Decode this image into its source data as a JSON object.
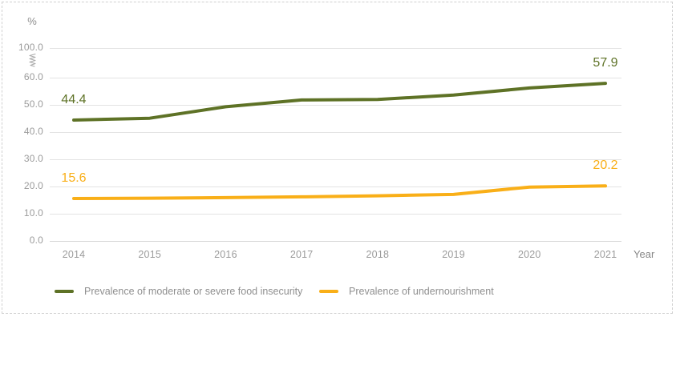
{
  "chart_data": {
    "type": "line",
    "unit_label": "%",
    "xlabel": "Year",
    "categories": [
      "2014",
      "2015",
      "2016",
      "2017",
      "2018",
      "2019",
      "2020",
      "2021"
    ],
    "y_ticks": [
      "100.0",
      "60.0",
      "50.0",
      "40.0",
      "30.0",
      "20.0",
      "10.0",
      "0.0"
    ],
    "y_tick_values": [
      100,
      60,
      50,
      40,
      30,
      20,
      10,
      0
    ],
    "axis_break_between": [
      60,
      100
    ],
    "grid": true,
    "legend_position": "bottom",
    "series": [
      {
        "name": "Prevalence of moderate or severe food insecurity",
        "color": "#5e7226",
        "values": [
          44.4,
          45.1,
          49.3,
          51.8,
          52.0,
          53.6,
          56.2,
          57.9
        ],
        "first_label": "44.4",
        "last_label": "57.9"
      },
      {
        "name": "Prevalence of undernourishment",
        "color": "#f9af18",
        "values": [
          15.6,
          15.7,
          15.9,
          16.2,
          16.6,
          17.1,
          19.8,
          20.2
        ],
        "first_label": "15.6",
        "last_label": "20.2"
      }
    ]
  }
}
